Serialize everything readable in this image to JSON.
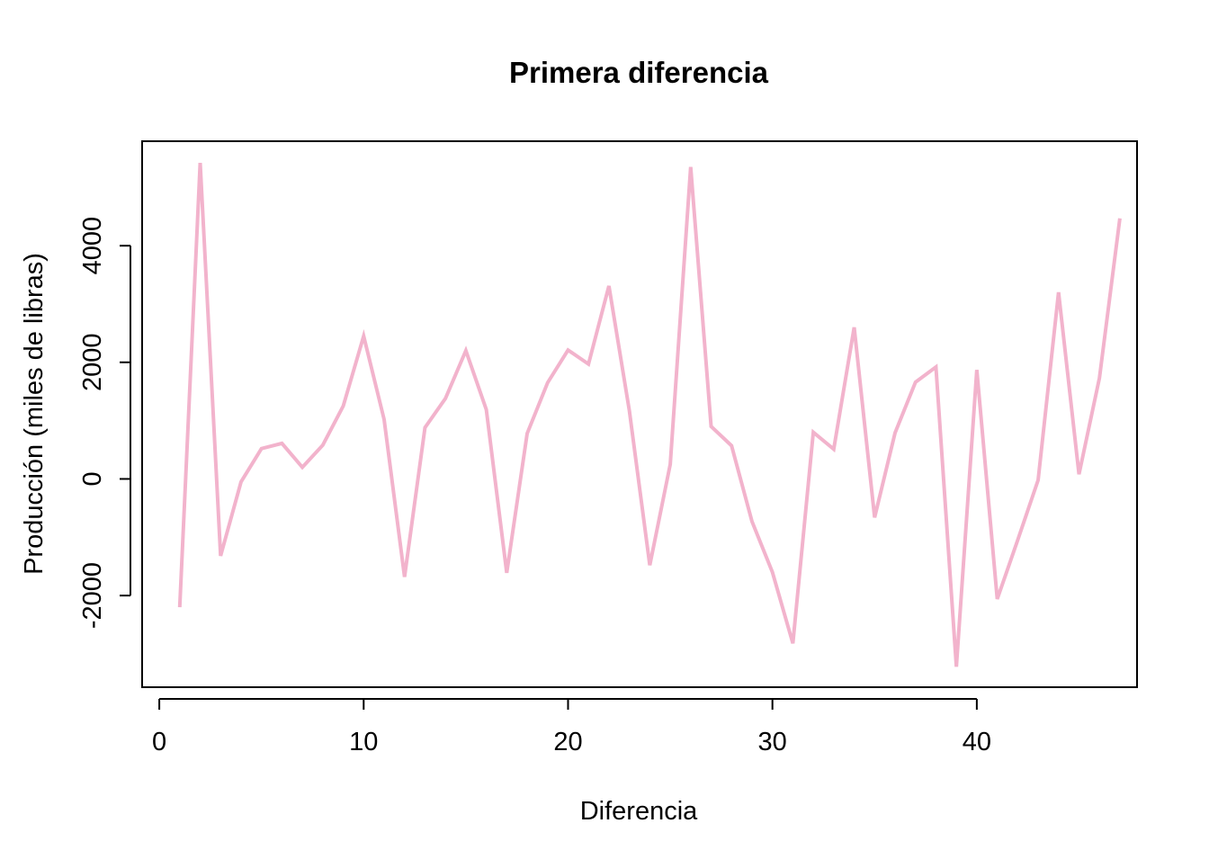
{
  "chart_data": {
    "type": "line",
    "title": "Primera diferencia",
    "xlabel": "Diferencia",
    "ylabel": "Producción (miles de libras)",
    "xlim": [
      -0.84,
      47.84
    ],
    "ylim": [
      -3572,
      5792
    ],
    "x_ticks": [
      0,
      10,
      20,
      30,
      40
    ],
    "y_ticks": [
      -2000,
      0,
      2000,
      4000
    ],
    "x_tick_labels": [
      "0",
      "10",
      "20",
      "30",
      "40"
    ],
    "y_tick_labels": [
      "-2000",
      "0",
      "2000",
      "4000"
    ],
    "grid": false,
    "legend": "none",
    "line_color": "#f2b3cc",
    "series": [
      {
        "x": [
          1,
          2,
          3,
          4,
          5,
          6,
          7,
          8,
          9,
          10,
          11,
          12,
          13,
          14,
          15,
          16,
          17,
          18,
          19,
          20,
          21,
          22,
          23,
          24,
          25,
          26,
          27,
          28,
          29,
          30,
          31,
          32,
          33,
          34,
          35,
          36,
          37,
          38,
          39,
          40,
          41,
          42,
          43,
          44,
          45,
          46,
          47
        ],
        "values": [
          -2200,
          5420,
          -1320,
          -50,
          520,
          610,
          200,
          580,
          1250,
          2450,
          1020,
          -1680,
          880,
          1380,
          2200,
          1190,
          -1610,
          780,
          1650,
          2210,
          1970,
          3310,
          1170,
          -1480,
          250,
          5350,
          900,
          570,
          -730,
          -1600,
          -2820,
          800,
          510,
          2600,
          -660,
          790,
          1660,
          1920,
          -3220,
          1870,
          -2060,
          -1050,
          -20,
          3200,
          80,
          1730,
          4470
        ]
      }
    ]
  }
}
